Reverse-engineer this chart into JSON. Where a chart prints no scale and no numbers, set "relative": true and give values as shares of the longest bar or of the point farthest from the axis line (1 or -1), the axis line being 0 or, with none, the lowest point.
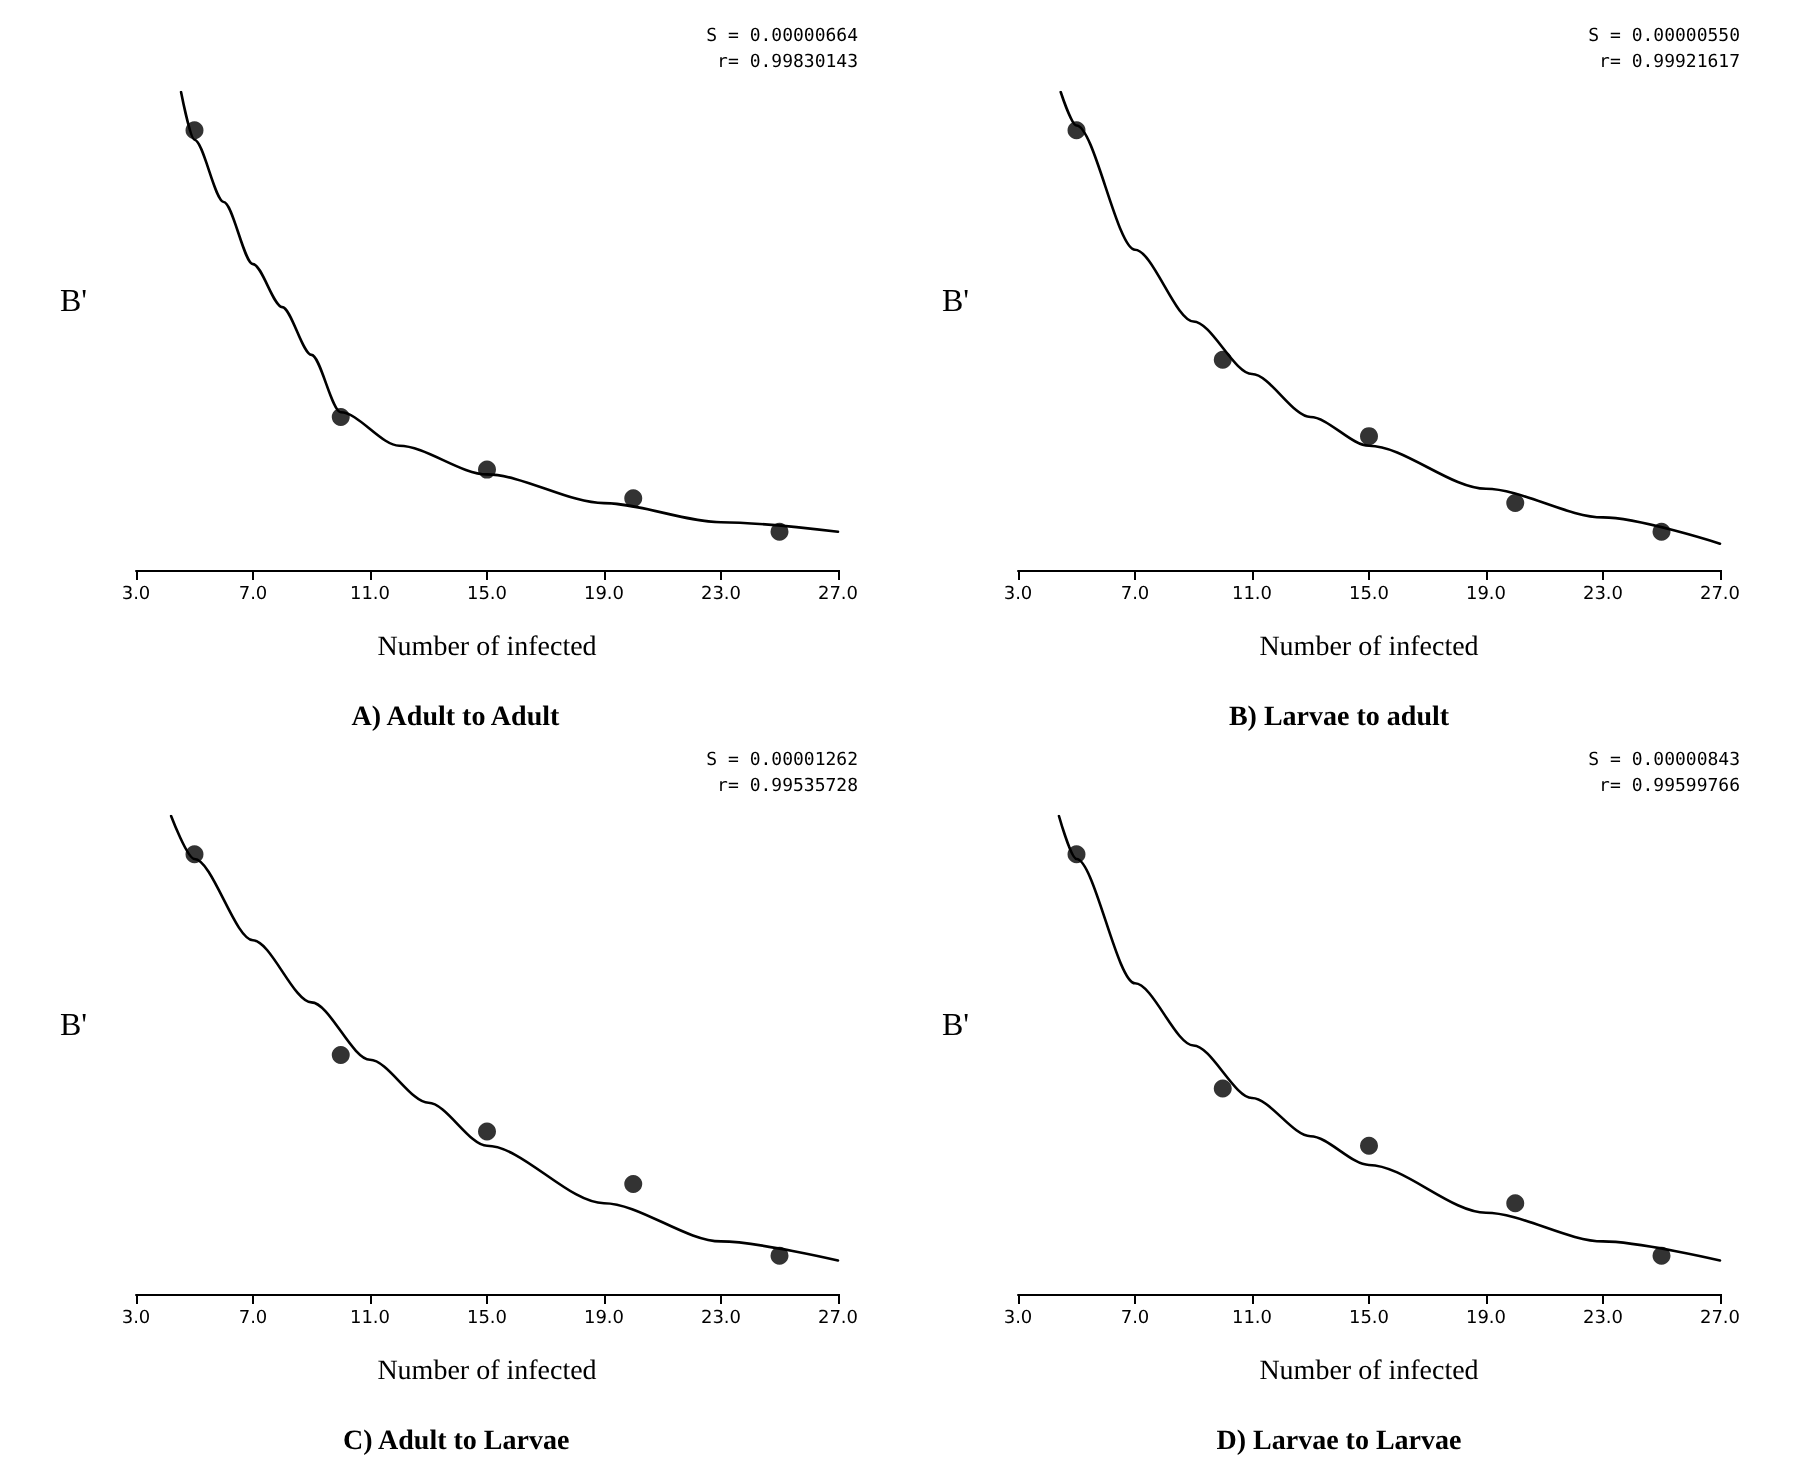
{
  "chart_data": [
    {
      "type": "scatter",
      "title": "A) Adult to Adult",
      "xlabel": "Number of infected",
      "ylabel": "B'",
      "relative": true,
      "marker": "circle",
      "annotations": [
        "S = 0.00000664",
        "r= 0.99830143"
      ],
      "xlim": [
        3,
        27
      ],
      "xticks": [
        {
          "value": 3,
          "label": "3.0"
        },
        {
          "value": 7,
          "label": "7.0"
        },
        {
          "value": 11,
          "label": "11.0"
        },
        {
          "value": 15,
          "label": "15.0"
        },
        {
          "value": 19,
          "label": "19.0"
        },
        {
          "value": 23,
          "label": "23.0"
        },
        {
          "value": 27,
          "label": "27.0"
        }
      ],
      "series": [
        {
          "color": "#000000",
          "x": [
            5,
            10,
            15,
            20,
            25
          ],
          "values": [
            0.92,
            0.32,
            0.21,
            0.15,
            0.08
          ]
        },
        {
          "type": "line",
          "color": "#000000",
          "marker": "none",
          "x": [
            4.54,
            5,
            6,
            7,
            8,
            9,
            10,
            12,
            15,
            19,
            23,
            27
          ],
          "values": [
            1.0,
            0.9,
            0.77,
            0.64,
            0.55,
            0.45,
            0.33,
            0.26,
            0.2,
            0.14,
            0.1,
            0.08
          ]
        }
      ]
    },
    {
      "type": "scatter",
      "title": "B) Larvae to adult",
      "xlabel": "Number of infected",
      "ylabel": "B'",
      "relative": true,
      "marker": "circle",
      "annotations": [
        "S = 0.00000550",
        "r= 0.99921617"
      ],
      "xlim": [
        3,
        27
      ],
      "xticks": [
        {
          "value": 3,
          "label": "3.0"
        },
        {
          "value": 7,
          "label": "7.0"
        },
        {
          "value": 11,
          "label": "11.0"
        },
        {
          "value": 15,
          "label": "15.0"
        },
        {
          "value": 19,
          "label": "19.0"
        },
        {
          "value": 23,
          "label": "23.0"
        },
        {
          "value": 27,
          "label": "27.0"
        }
      ],
      "series": [
        {
          "color": "#000000",
          "x": [
            5,
            10,
            15,
            20,
            25
          ],
          "values": [
            0.92,
            0.44,
            0.28,
            0.14,
            0.08
          ]
        },
        {
          "type": "line",
          "color": "#000000",
          "marker": "none",
          "x": [
            4.46,
            5,
            7,
            9,
            11,
            13,
            15,
            19,
            23,
            27
          ],
          "values": [
            1.0,
            0.93,
            0.67,
            0.52,
            0.41,
            0.32,
            0.26,
            0.17,
            0.11,
            0.055
          ]
        }
      ]
    },
    {
      "type": "scatter",
      "title": "C) Adult to Larvae",
      "xlabel": "Number of infected",
      "ylabel": "B'",
      "relative": true,
      "marker": "circle",
      "annotations": [
        "S = 0.00001262",
        "r= 0.99535728"
      ],
      "xlim": [
        3,
        27
      ],
      "xticks": [
        {
          "value": 3,
          "label": "3.0"
        },
        {
          "value": 7,
          "label": "7.0"
        },
        {
          "value": 11,
          "label": "11.0"
        },
        {
          "value": 15,
          "label": "15.0"
        },
        {
          "value": 19,
          "label": "19.0"
        },
        {
          "value": 23,
          "label": "23.0"
        },
        {
          "value": 27,
          "label": "27.0"
        }
      ],
      "series": [
        {
          "color": "#000000",
          "x": [
            5,
            10,
            15,
            20,
            25
          ],
          "values": [
            0.92,
            0.5,
            0.34,
            0.23,
            0.08
          ]
        },
        {
          "type": "line",
          "color": "#000000",
          "marker": "none",
          "x": [
            4.2,
            5,
            7,
            9,
            11,
            13,
            15,
            19,
            23,
            27
          ],
          "values": [
            1.0,
            0.91,
            0.74,
            0.61,
            0.49,
            0.4,
            0.31,
            0.19,
            0.11,
            0.07
          ]
        }
      ]
    },
    {
      "type": "scatter",
      "title": "D) Larvae to Larvae",
      "xlabel": "Number of infected",
      "ylabel": "B'",
      "relative": true,
      "marker": "circle",
      "annotations": [
        "S = 0.00000843",
        "r= 0.99599766"
      ],
      "xlim": [
        3,
        27
      ],
      "xticks": [
        {
          "value": 3,
          "label": "3.0"
        },
        {
          "value": 7,
          "label": "7.0"
        },
        {
          "value": 11,
          "label": "11.0"
        },
        {
          "value": 15,
          "label": "15.0"
        },
        {
          "value": 19,
          "label": "19.0"
        },
        {
          "value": 23,
          "label": "23.0"
        },
        {
          "value": 27,
          "label": "27.0"
        }
      ],
      "series": [
        {
          "color": "#000000",
          "x": [
            5,
            10,
            15,
            20,
            25
          ],
          "values": [
            0.92,
            0.43,
            0.31,
            0.19,
            0.08
          ]
        },
        {
          "type": "line",
          "color": "#000000",
          "marker": "none",
          "x": [
            4.4,
            5,
            7,
            9,
            11,
            13,
            15,
            19,
            23,
            27
          ],
          "values": [
            1.0,
            0.91,
            0.65,
            0.52,
            0.41,
            0.33,
            0.27,
            0.17,
            0.11,
            0.07
          ]
        }
      ]
    }
  ]
}
